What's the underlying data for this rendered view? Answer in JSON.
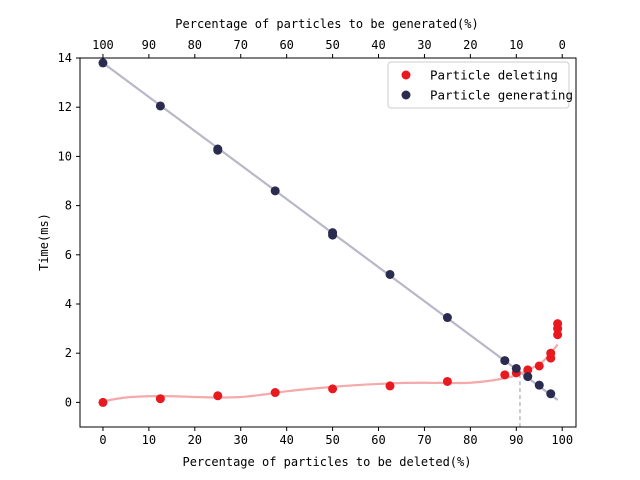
{
  "chart_data": {
    "type": "scatter",
    "xlabel": "Percentage of particles to be deleted(%)",
    "x2label": "Percentage of particles to be generated(%)",
    "ylabel": "Time(ms)",
    "xlim": [
      -5,
      103
    ],
    "ylim": [
      -1,
      14
    ],
    "xticks": [
      0,
      10,
      20,
      30,
      40,
      50,
      60,
      70,
      80,
      90,
      100
    ],
    "yticks": [
      0,
      2,
      4,
      6,
      8,
      10,
      12,
      14
    ],
    "x2ticks": [
      100,
      90,
      80,
      70,
      60,
      50,
      40,
      30,
      20,
      10,
      0
    ],
    "grid": false,
    "legend_position": "top-right",
    "crossover_marker_x": 90.8,
    "series": [
      {
        "name": "Particle deleting",
        "color": "#e8191f",
        "fit_color": "#f4a9ab",
        "points": [
          [
            0,
            0.0
          ],
          [
            12.5,
            0.15
          ],
          [
            25,
            0.27
          ],
          [
            37.5,
            0.4
          ],
          [
            50,
            0.55
          ],
          [
            62.5,
            0.67
          ],
          [
            75,
            0.85
          ],
          [
            87.5,
            1.12
          ],
          [
            90,
            1.2
          ],
          [
            92.5,
            1.32
          ],
          [
            95,
            1.48
          ],
          [
            97.5,
            1.8
          ],
          [
            97.5,
            2.0
          ],
          [
            99,
            2.75
          ],
          [
            99,
            3.0
          ],
          [
            99,
            3.2
          ]
        ],
        "fit": [
          [
            0,
            0.05
          ],
          [
            5,
            0.2
          ],
          [
            10,
            0.25
          ],
          [
            15,
            0.25
          ],
          [
            20,
            0.22
          ],
          [
            25,
            0.2
          ],
          [
            30,
            0.22
          ],
          [
            35,
            0.32
          ],
          [
            40,
            0.45
          ],
          [
            45,
            0.55
          ],
          [
            50,
            0.63
          ],
          [
            55,
            0.7
          ],
          [
            60,
            0.75
          ],
          [
            65,
            0.79
          ],
          [
            70,
            0.8
          ],
          [
            75,
            0.79
          ],
          [
            80,
            0.8
          ],
          [
            85,
            0.9
          ],
          [
            90,
            1.1
          ],
          [
            93,
            1.35
          ],
          [
            96,
            1.7
          ],
          [
            99,
            2.35
          ]
        ]
      },
      {
        "name": "Particle generating",
        "color": "#2b2a4f",
        "fit_color": "#b8b8c9",
        "points": [
          [
            0,
            13.8
          ],
          [
            12.5,
            12.05
          ],
          [
            25,
            10.3
          ],
          [
            25,
            10.25
          ],
          [
            37.5,
            8.6
          ],
          [
            50,
            6.9
          ],
          [
            50,
            6.8
          ],
          [
            62.5,
            5.2
          ],
          [
            75,
            3.45
          ],
          [
            87.5,
            1.7
          ],
          [
            90,
            1.38
          ],
          [
            92.5,
            1.05
          ],
          [
            95,
            0.7
          ],
          [
            97.5,
            0.35
          ]
        ],
        "fit": [
          [
            0,
            13.8
          ],
          [
            99,
            0.1
          ]
        ]
      }
    ]
  }
}
